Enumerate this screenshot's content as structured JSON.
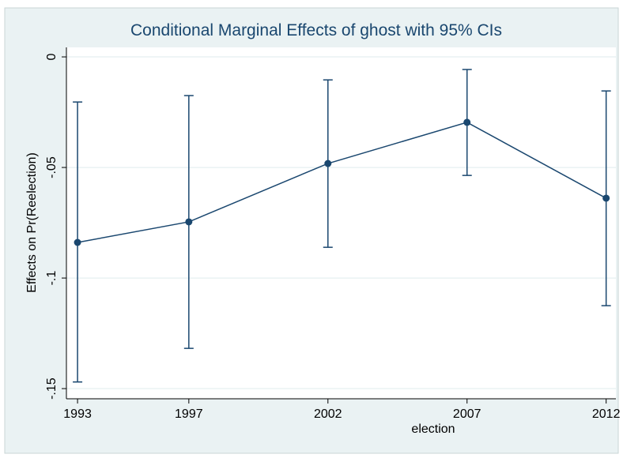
{
  "chart_data": {
    "type": "line",
    "title": "Conditional Marginal Effects of ghost with 95% CIs",
    "xlabel": "election",
    "ylabel": "Effects on Pr(Reelection)",
    "x": [
      1993,
      1997,
      2002,
      2007,
      2012
    ],
    "series": [
      {
        "color": "#1a476f",
        "values": [
          -0.0839,
          -0.0746,
          -0.0482,
          -0.0296,
          -0.0639
        ],
        "ci_lower": [
          -0.147,
          -0.1318,
          -0.0861,
          -0.0536,
          -0.1125
        ],
        "ci_upper": [
          -0.0204,
          -0.0175,
          -0.0104,
          -0.0057,
          -0.0154
        ]
      }
    ],
    "xlim": [
      1992.6,
      2012.35
    ],
    "xticks": [
      1993,
      1997,
      2002,
      2007,
      2012
    ],
    "ylim": [
      -0.1546,
      0.0043
    ],
    "yticks": [
      {
        "value": 0,
        "label": "0"
      },
      {
        "value": -0.05,
        "label": "-.05"
      },
      {
        "value": -0.1,
        "label": "-.1"
      },
      {
        "value": -0.15,
        "label": "-.15"
      }
    ],
    "grid": true
  }
}
